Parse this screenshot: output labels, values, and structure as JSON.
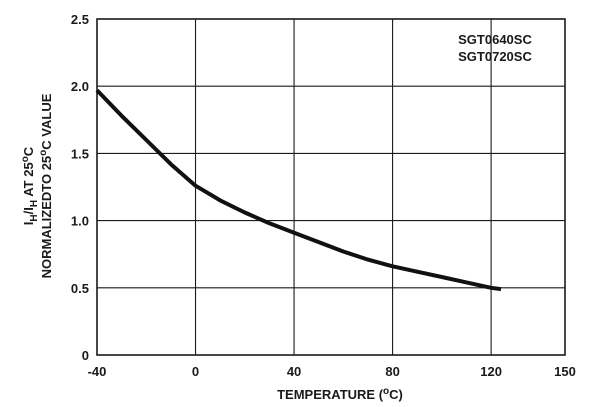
{
  "chart_data": {
    "type": "line",
    "xlabel": {
      "main": "TEMPERATURE (",
      "sup": "o",
      "tail": "C)"
    },
    "ylabel": {
      "line1": {
        "a": "I",
        "a_sub": "H",
        "b": "/I",
        "b_sub": "H",
        "c": " AT 25",
        "c_sup": "o",
        "d": "C"
      },
      "line2": {
        "a": "NORMALIZEDTO 25",
        "a_sup": "o",
        "b": "C VALUE"
      }
    },
    "xlim": [
      -40,
      150
    ],
    "ylim": [
      0,
      2.5
    ],
    "x_ticks": [
      -40,
      0,
      40,
      80,
      120,
      150
    ],
    "x_tick_labels": [
      "-40",
      "0",
      "40",
      "80",
      "120",
      "150"
    ],
    "y_ticks": [
      0,
      0.5,
      1.0,
      1.5,
      2.0,
      2.5
    ],
    "y_tick_labels": [
      "0",
      "0.5",
      "1.0",
      "1.5",
      "2.0",
      "2.5"
    ],
    "grid": true,
    "legend_position": "top-right",
    "legend_lines": [
      "SGT0640SC",
      "SGT0720SC"
    ],
    "series": [
      {
        "x": [
          -40,
          -30,
          -20,
          -10,
          0,
          10,
          20,
          30,
          40,
          50,
          60,
          70,
          80,
          90,
          100,
          110,
          120,
          124
        ],
        "y": [
          1.97,
          1.78,
          1.6,
          1.42,
          1.26,
          1.15,
          1.06,
          0.98,
          0.91,
          0.84,
          0.77,
          0.71,
          0.66,
          0.62,
          0.58,
          0.54,
          0.5,
          0.49
        ]
      }
    ]
  }
}
